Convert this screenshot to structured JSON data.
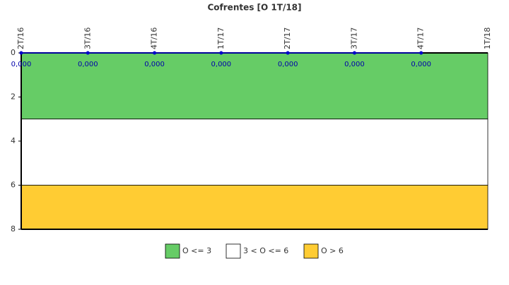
{
  "chart_data": {
    "type": "line",
    "title": "Cofrentes [O 1T/18]",
    "categories": [
      "2T/16",
      "3T/16",
      "4T/16",
      "1T/17",
      "2T/17",
      "3T/17",
      "4T/17",
      "1T/18"
    ],
    "values": [
      0,
      0,
      0,
      0,
      0,
      0,
      0,
      null
    ],
    "value_labels": [
      "0,000",
      "0,000",
      "0,000",
      "0,000",
      "0,000",
      "0,000",
      "0,000",
      null
    ],
    "color": "#0000cc",
    "ylim": [
      0,
      8
    ],
    "yticks": [
      0,
      2,
      4,
      6,
      8
    ],
    "y_inverted": true,
    "bands": [
      {
        "name": "O <= 3",
        "color": "#66cc66",
        "from": 0,
        "to": 3
      },
      {
        "name": "3 < O <= 6",
        "color": "#ffffff",
        "from": 3,
        "to": 6
      },
      {
        "name": "O > 6",
        "color": "#ffcc33",
        "from": 6,
        "to": 8
      }
    ]
  }
}
